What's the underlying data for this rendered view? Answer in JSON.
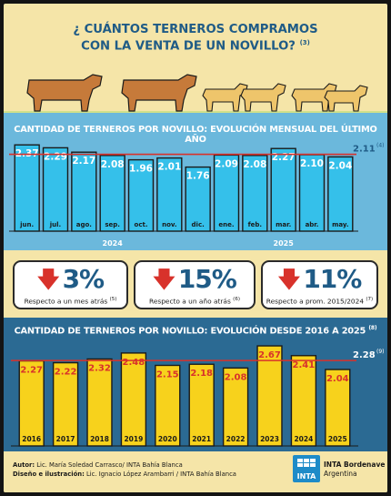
{
  "title": {
    "line1": "¿ CUÁNTOS TERNEROS COMPRAMOS",
    "line2": "CON LA VENTA DE UN NOVILLO?",
    "ref": "(3)"
  },
  "colors": {
    "background": "#f5e5a8",
    "blue_band": "#6bb8dc",
    "dark_band": "#2b6a93",
    "light_bar": "#35c0ea",
    "yellow_bar": "#f7d21c",
    "reference_line": "#d8322b",
    "title_blue": "#1f5b86",
    "down_arrow": "#d8322b"
  },
  "chart_data": [
    {
      "type": "bar",
      "title": "CANTIDAD DE TERNEROS POR NOVILLO: EVOLUCIÓN MENSUAL DEL ÚLTIMO AÑO",
      "categories": [
        "jun.",
        "jul.",
        "ago.",
        "sep.",
        "oct.",
        "nov.",
        "dic.",
        "ene.",
        "feb.",
        "mar.",
        "abr.",
        "may."
      ],
      "values": [
        2.37,
        2.29,
        2.17,
        2.08,
        1.96,
        2.01,
        1.76,
        2.09,
        2.08,
        2.27,
        2.1,
        2.04
      ],
      "value_labels": [
        "2.37",
        "2.29",
        "2.17",
        "2.08",
        "1.96",
        "2.01",
        "1.76",
        "2.09",
        "2.08",
        "2.27",
        "2.10",
        "2.04"
      ],
      "group_labels": [
        {
          "label": "2024",
          "from": "jun.",
          "to": "dic."
        },
        {
          "label": "2025",
          "from": "ene.",
          "to": "may."
        }
      ],
      "reference_line": {
        "value": 2.11,
        "label": "2.11",
        "ref": "(4)"
      },
      "ylim": [
        0,
        2.45
      ],
      "xlabel": "",
      "ylabel": "",
      "grid": false
    },
    {
      "type": "bar",
      "title": "CANTIDAD DE TERNEROS POR NOVILLO: EVOLUCIÓN DESDE 2016 A 2025",
      "title_ref": "(8)",
      "categories": [
        "2016",
        "2017",
        "2018",
        "2019",
        "2020",
        "2021",
        "2022",
        "2023",
        "2024",
        "2025"
      ],
      "values": [
        2.27,
        2.22,
        2.32,
        2.48,
        2.15,
        2.18,
        2.08,
        2.67,
        2.41,
        2.04
      ],
      "value_labels": [
        "2.27",
        "2.22",
        "2.32",
        "2.48",
        "2.15",
        "2.18",
        "2.08",
        "2.67",
        "2.41",
        "2.04"
      ],
      "reference_line": {
        "value": 2.28,
        "label": "2.28",
        "ref": "(9)"
      },
      "ylim": [
        0,
        2.72
      ],
      "xlabel": "",
      "ylabel": "",
      "grid": false
    }
  ],
  "kpis": [
    {
      "value": "3%",
      "label": "Respecto a un mes atrás",
      "ref": "(5)",
      "direction": "down",
      "icon": "down-arrow-icon"
    },
    {
      "value": "15%",
      "label": "Respecto a un año atrás",
      "ref": "(6)",
      "direction": "down",
      "icon": "down-arrow-icon"
    },
    {
      "value": "11%",
      "label": "Respecto a prom. 2015/2024",
      "ref": "(7)",
      "direction": "down",
      "icon": "down-arrow-icon"
    }
  ],
  "footer": {
    "author_label": "Autor:",
    "author": "Lic. María Soledad Carrasco/ INTA Bahía Blanca",
    "design_label": "Diseño e ilustración:",
    "design": "Lic. Ignacio López Arambarri / INTA Bahía Blanca",
    "logo_text": "INTA",
    "org_name": "INTA Bordenave",
    "org_country": "Argentina"
  }
}
